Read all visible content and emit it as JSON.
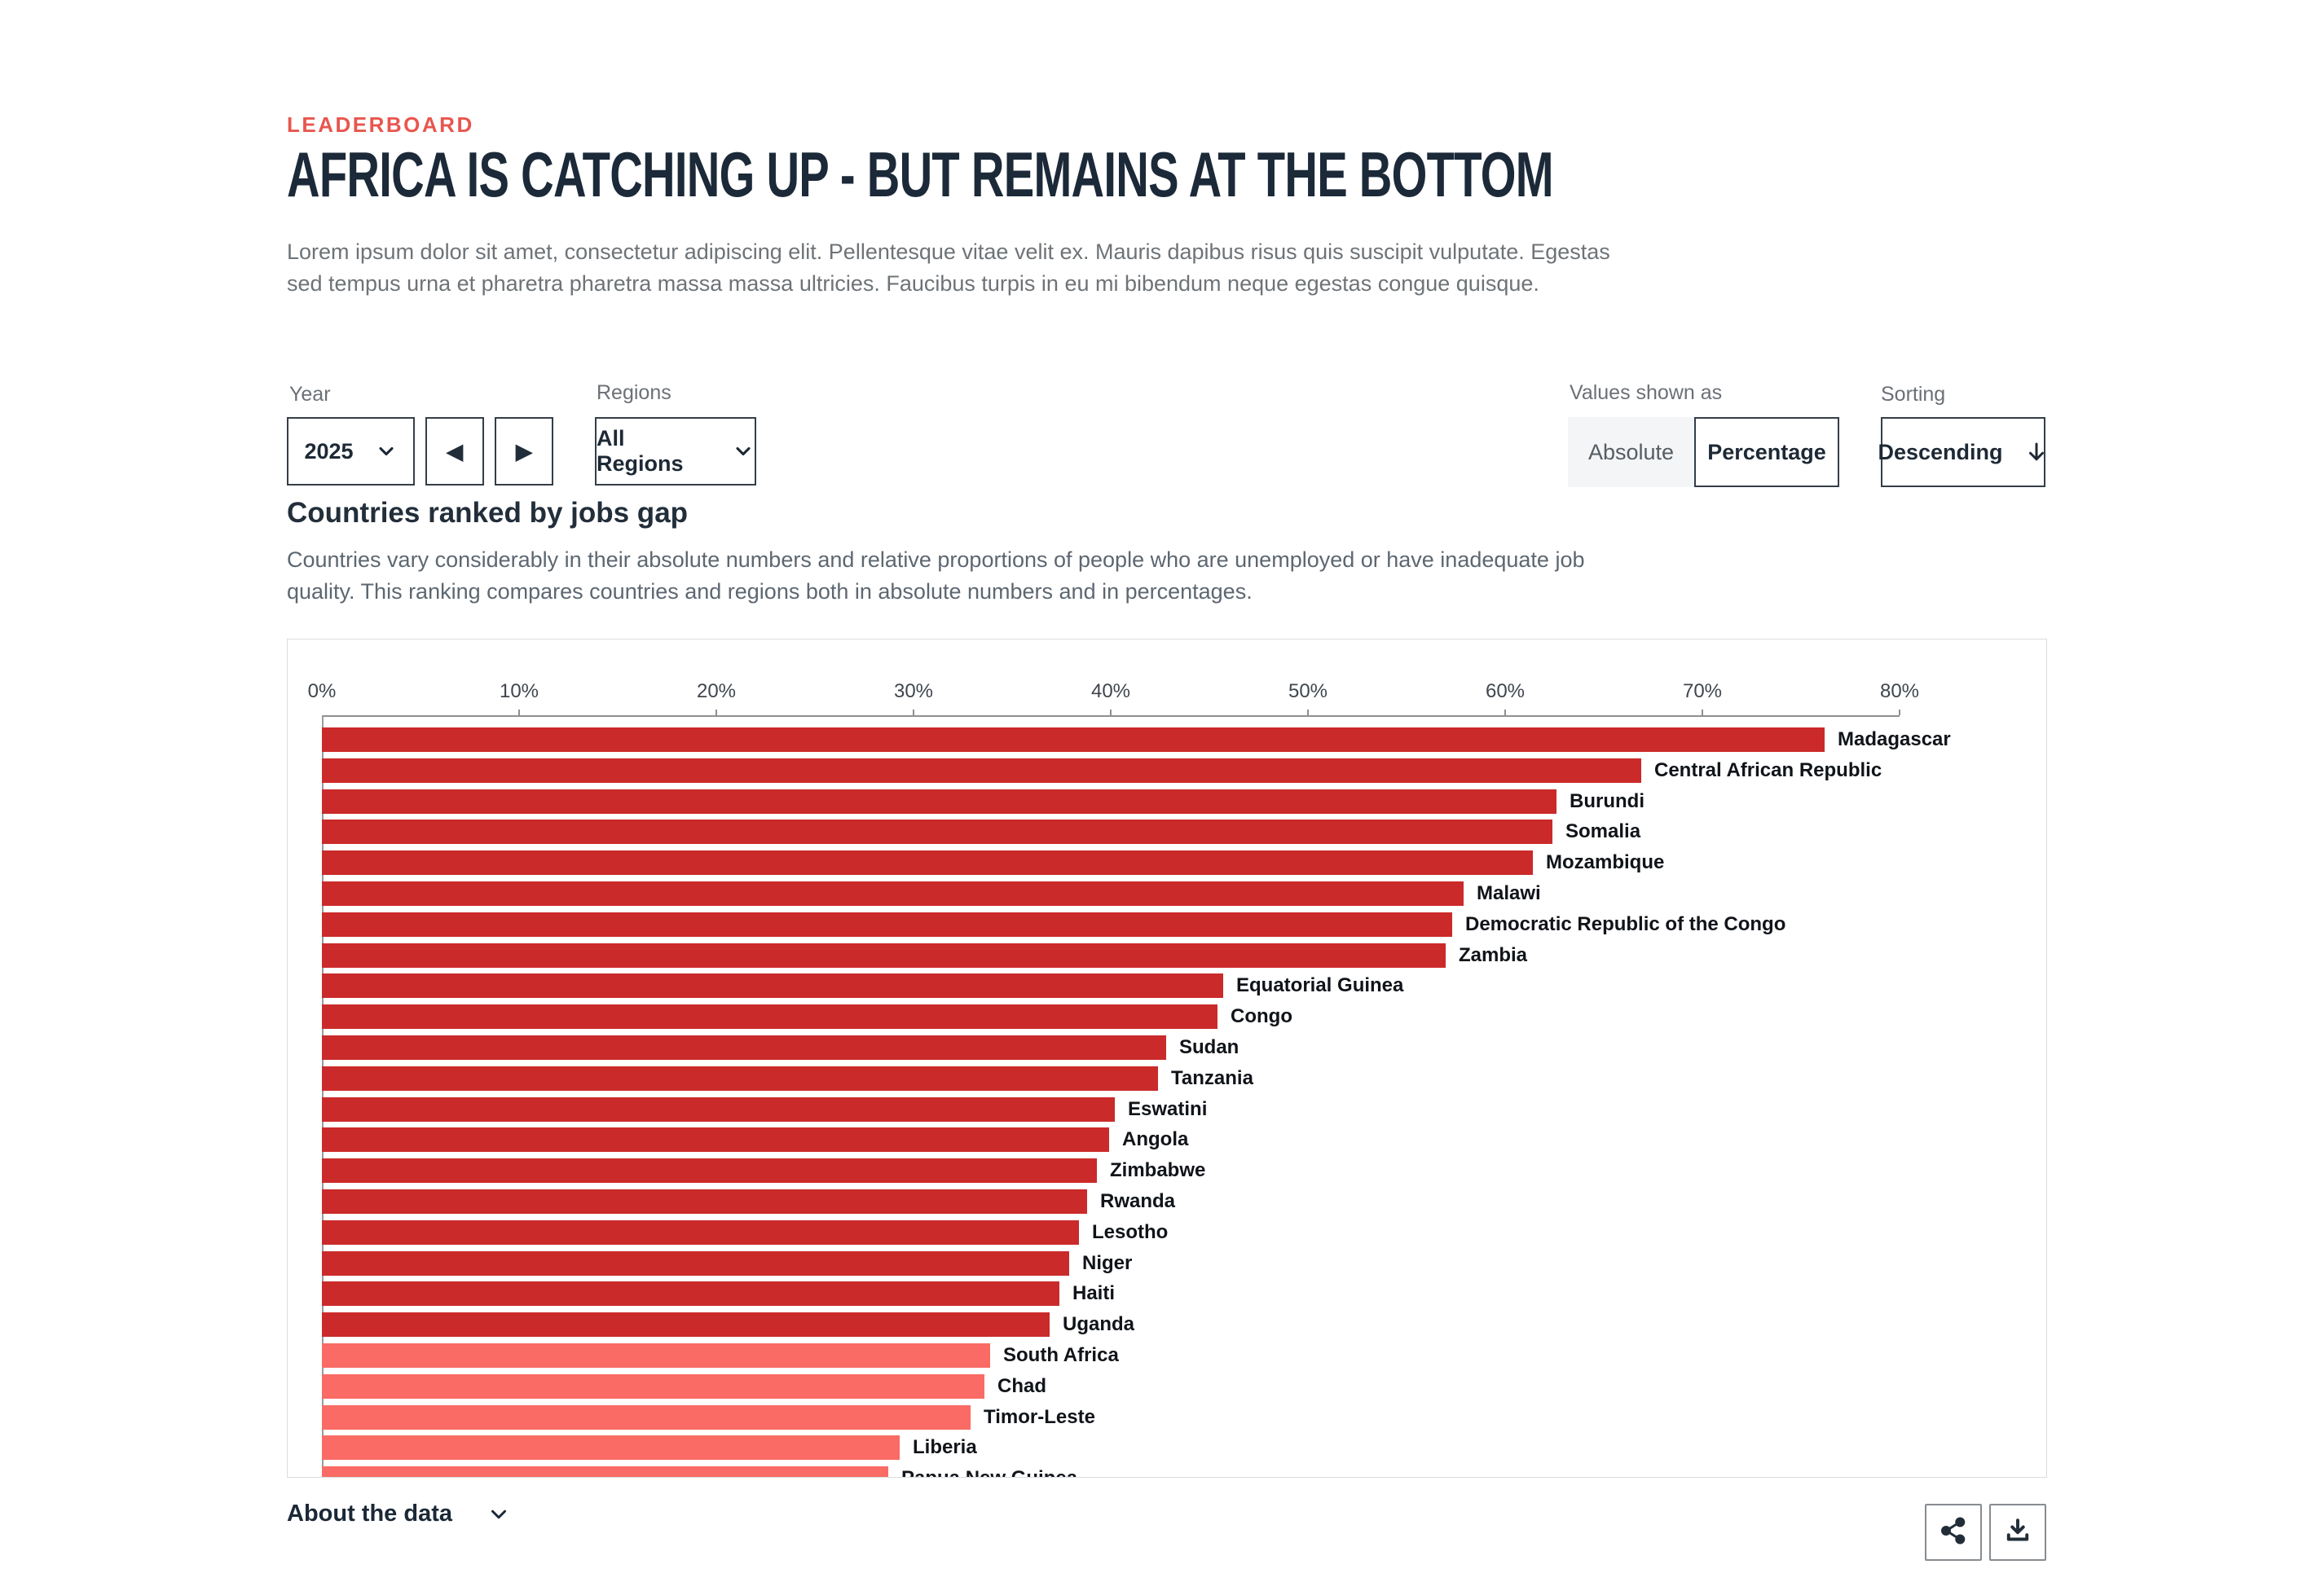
{
  "page": {
    "eyebrow": "LEADERBOARD",
    "title": "AFRICA IS CATCHING UP - BUT REMAINS AT THE BOTTOM",
    "intro": "Lorem ipsum dolor sit amet, consectetur adipiscing elit. Pellentesque vitae velit ex. Mauris dapibus risus quis suscipit vulputate. Egestas sed tempus urna et pharetra pharetra massa massa ultricies. Faucibus turpis in eu mi bibendum neque egestas congue quisque."
  },
  "controls": {
    "year": {
      "label": "Year",
      "value": "2025"
    },
    "prev_icon": "left-triangle",
    "next_icon": "right-triangle",
    "regions": {
      "label": "Regions",
      "value": "All Regions"
    },
    "values_shown_as": {
      "label": "Values shown as",
      "options": [
        "Absolute",
        "Percentage"
      ],
      "selected": "Percentage"
    },
    "sorting": {
      "label": "Sorting",
      "value": "Descending"
    }
  },
  "section": {
    "heading": "Countries ranked by jobs gap",
    "description": "Countries vary considerably in their absolute numbers and relative proportions of people who are unemployed or have inadequate job quality. This ranking compares countries and regions both in absolute numbers and in percentages."
  },
  "chart_data": {
    "type": "bar",
    "orientation": "horizontal",
    "title": "Countries ranked by jobs gap",
    "unit": "% of population",
    "xlim": [
      0,
      80
    ],
    "x_ticks": [
      "0%",
      "10%",
      "20%",
      "30%",
      "40%",
      "50%",
      "60%",
      "70%",
      "80%"
    ],
    "grid": false,
    "legend": "none",
    "colors": {
      "default": "#cb2a2a",
      "highlight": "#f96b64"
    },
    "categories": [
      "Madagascar",
      "Central African Republic",
      "Burundi",
      "Somalia",
      "Mozambique",
      "Malawi",
      "Democratic Republic of the Congo",
      "Zambia",
      "Equatorial Guinea",
      "Congo",
      "Sudan",
      "Tanzania",
      "Eswatini",
      "Angola",
      "Zimbabwe",
      "Rwanda",
      "Lesotho",
      "Niger",
      "Haiti",
      "Uganda",
      "South Africa",
      "Chad",
      "Timor-Leste",
      "Liberia",
      "Papua New Guinea"
    ],
    "values": [
      76.2,
      66.9,
      62.6,
      62.4,
      61.4,
      57.9,
      57.3,
      57.0,
      45.7,
      45.4,
      42.8,
      42.4,
      40.2,
      39.9,
      39.3,
      38.8,
      38.4,
      37.9,
      37.4,
      36.9,
      33.9,
      33.6,
      32.9,
      29.3,
      28.7
    ],
    "bar_shades": [
      "default",
      "default",
      "default",
      "default",
      "default",
      "default",
      "default",
      "default",
      "default",
      "default",
      "default",
      "default",
      "default",
      "default",
      "default",
      "default",
      "default",
      "default",
      "default",
      "default",
      "highlight",
      "highlight",
      "highlight",
      "highlight",
      "highlight"
    ]
  },
  "footer": {
    "about_label": "About the data"
  }
}
